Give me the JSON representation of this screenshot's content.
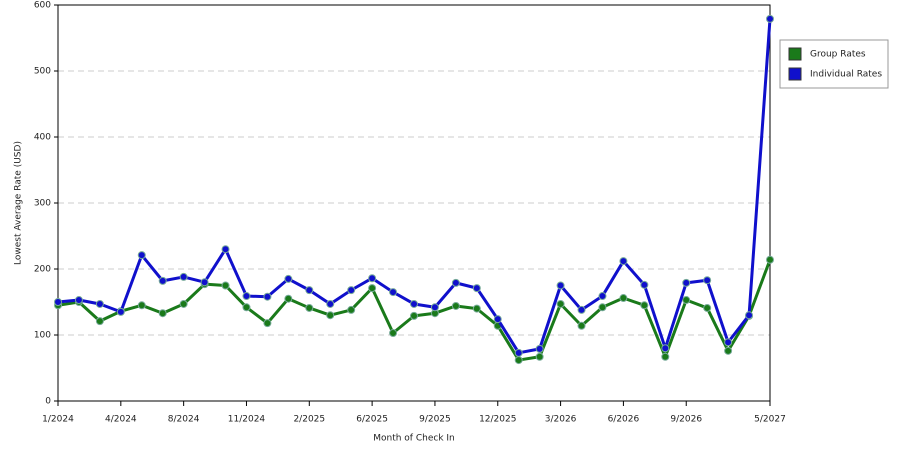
{
  "chart_data": {
    "type": "line",
    "x_label": "Month of Check In",
    "y_label": "Lowest Average Rate (USD)",
    "categories": [
      "1/2024",
      null,
      null,
      "4/2024",
      null,
      null,
      "8/2024",
      null,
      null,
      "11/2024",
      null,
      null,
      "2/2025",
      null,
      null,
      "6/2025",
      null,
      null,
      "9/2025",
      null,
      null,
      "12/2025",
      null,
      null,
      "3/2026",
      null,
      null,
      "6/2026",
      null,
      null,
      "9/2026",
      null,
      null,
      null,
      "5/2027"
    ],
    "series": [
      {
        "name": "Group Rates",
        "color": "#1a7a1a",
        "values": [
          145,
          150,
          121,
          136,
          145,
          133,
          147,
          177,
          175,
          142,
          118,
          155,
          141,
          130,
          138,
          171,
          103,
          129,
          133,
          144,
          140,
          114,
          62,
          67,
          147,
          114,
          142,
          156,
          145,
          67,
          153,
          141,
          76,
          129,
          214
        ]
      },
      {
        "name": "Individual Rates",
        "color": "#1010cc",
        "values": [
          150,
          153,
          147,
          135,
          221,
          182,
          188,
          180,
          230,
          159,
          158,
          185,
          168,
          147,
          168,
          186,
          165,
          147,
          142,
          179,
          171,
          124,
          73,
          79,
          175,
          138,
          159,
          212,
          176,
          80,
          179,
          183,
          89,
          130,
          579
        ]
      }
    ],
    "ylim": [
      0,
      600
    ],
    "yticks": [
      0,
      100,
      200,
      300,
      400,
      500,
      600
    ],
    "grid": true,
    "legend": "right"
  }
}
